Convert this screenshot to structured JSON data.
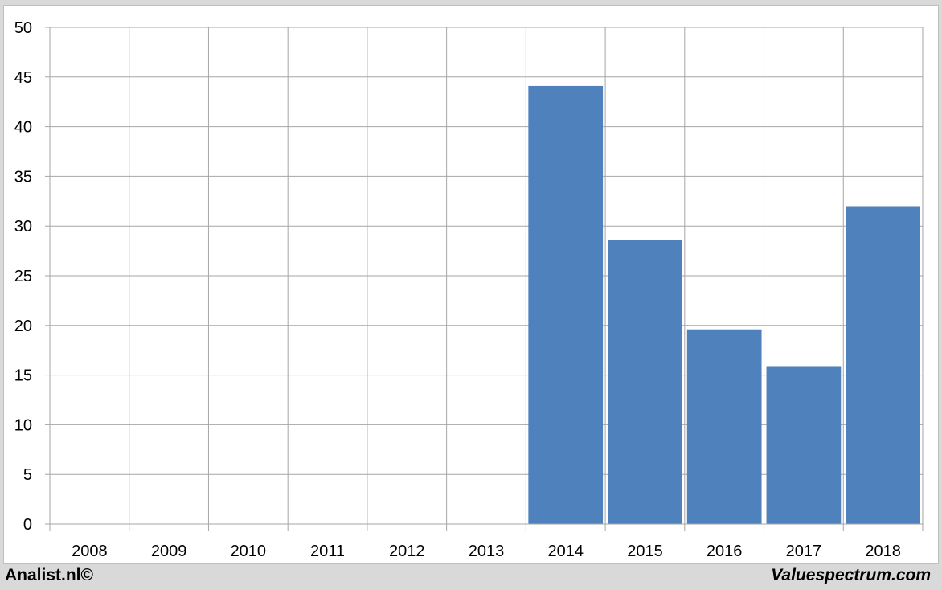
{
  "chart_data": {
    "type": "bar",
    "categories": [
      "2008",
      "2009",
      "2010",
      "2011",
      "2012",
      "2013",
      "2014",
      "2015",
      "2016",
      "2017",
      "2018"
    ],
    "values": [
      null,
      null,
      null,
      null,
      null,
      null,
      44.1,
      28.6,
      19.6,
      15.9,
      32.0
    ],
    "ylim": [
      0,
      50
    ],
    "yticks": [
      "0",
      "5",
      "10",
      "15",
      "20",
      "25",
      "30",
      "35",
      "40",
      "45",
      "50"
    ],
    "title": "",
    "xlabel": "",
    "ylabel": "",
    "grid": true,
    "bar_color": "#4f81bd",
    "grid_color": "#a6a6a6"
  },
  "footer": {
    "left": "Analist.nl©",
    "right": "Valuespectrum.com"
  }
}
